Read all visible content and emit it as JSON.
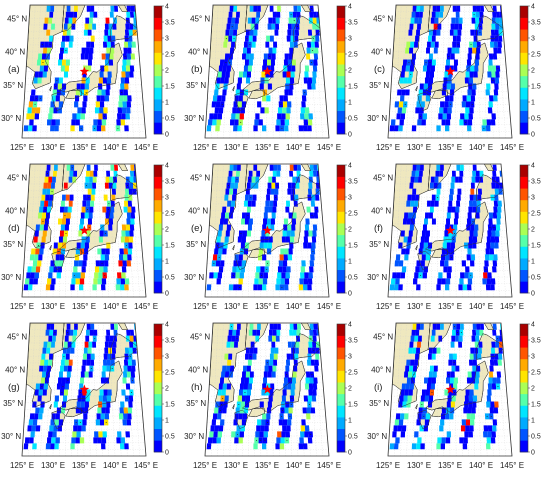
{
  "figure": {
    "panel_labels": [
      "(a)",
      "(b)",
      "(c)",
      "(d)",
      "(e)",
      "(f)",
      "(g)",
      "(h)",
      "(i)"
    ],
    "lat_labels": [
      "45° N",
      "40° N",
      "35° N",
      "30° N"
    ],
    "lon_labels": [
      "125° E",
      "130° E",
      "135° E",
      "140° E",
      "145° E"
    ],
    "lat_values": [
      45,
      40,
      35,
      30
    ],
    "lon_values": [
      125,
      130,
      135,
      140,
      145
    ],
    "map_extent": {
      "lon": [
        125,
        145
      ],
      "lat": [
        27,
        47
      ]
    },
    "marker": {
      "name": "red-star",
      "lon": 135.2,
      "lat": 37.0,
      "color": "#ff0000"
    },
    "land_color": "#efe8bf",
    "colorbar": {
      "ticks": [
        "4",
        "3.5",
        "3",
        "2.5",
        "2",
        "1.5",
        "1",
        "0.5",
        "0"
      ],
      "range": [
        0,
        4
      ],
      "colors": [
        "#0000ff",
        "#0055ff",
        "#00aaff",
        "#00e5ff",
        "#55ffaa",
        "#aaff55",
        "#ffe500",
        "#ffaa00",
        "#ff5500",
        "#ff0000",
        "#aa0000"
      ]
    },
    "panels": [
      {
        "label": "(a)",
        "intensity": 1.3
      },
      {
        "label": "(b)",
        "intensity": 0.9
      },
      {
        "label": "(c)",
        "intensity": 0.7
      },
      {
        "label": "(d)",
        "intensity": 1.6
      },
      {
        "label": "(e)",
        "intensity": 0.8
      },
      {
        "label": "(f)",
        "intensity": 0.6
      },
      {
        "label": "(g)",
        "intensity": 0.9
      },
      {
        "label": "(h)",
        "intensity": 0.9
      },
      {
        "label": "(i)",
        "intensity": 0.8
      }
    ]
  }
}
